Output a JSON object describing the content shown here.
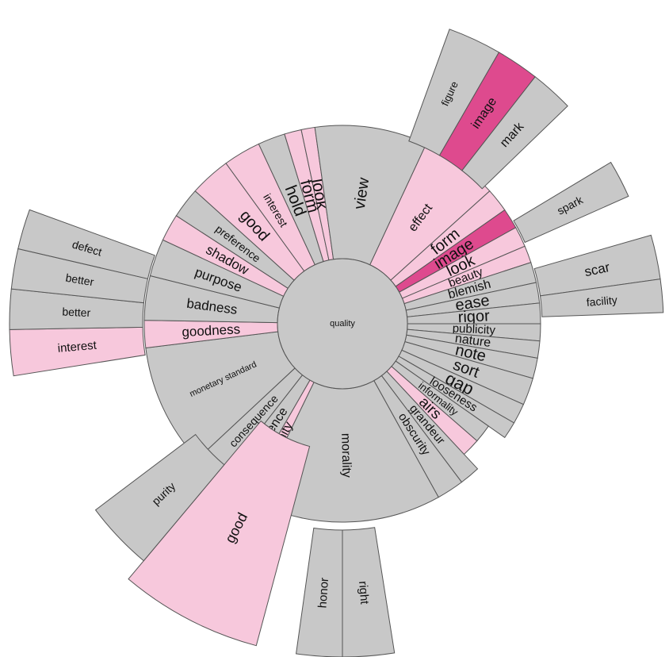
{
  "palette": {
    "gray": "#c8c8c8",
    "pink": "#f7c8dc",
    "magenta": "#de4a8e",
    "stroke": "#555555"
  },
  "center": {
    "label": "quality"
  },
  "ring1": [
    {
      "label": "effect",
      "color": "pink"
    },
    {
      "label": "form",
      "color": "pink"
    },
    {
      "label": "image",
      "color": "magenta"
    },
    {
      "label": "look",
      "color": "pink"
    },
    {
      "label": "beauty",
      "color": "pink"
    },
    {
      "label": "blemish",
      "color": "gray"
    },
    {
      "label": "ease",
      "color": "gray"
    },
    {
      "label": "rigor",
      "color": "gray"
    },
    {
      "label": "publicity",
      "color": "gray"
    },
    {
      "label": "nature",
      "color": "gray"
    },
    {
      "label": "note",
      "color": "gray"
    },
    {
      "label": "sort",
      "color": "gray"
    },
    {
      "label": "gap",
      "color": "gray"
    },
    {
      "label": "looseness",
      "color": "gray"
    },
    {
      "label": "informality",
      "color": "gray"
    },
    {
      "label": "airs",
      "color": "pink"
    },
    {
      "label": "grandeur",
      "color": "gray"
    },
    {
      "label": "obscurity",
      "color": "gray"
    },
    {
      "label": "morality",
      "color": "gray"
    },
    {
      "label": "divinity",
      "color": "pink"
    },
    {
      "label": "innocence",
      "color": "gray"
    },
    {
      "label": "consequence",
      "color": "gray"
    },
    {
      "label": "monetary standard",
      "color": "gray"
    },
    {
      "label": "goodness",
      "color": "pink"
    },
    {
      "label": "badness",
      "color": "gray"
    },
    {
      "label": "purpose",
      "color": "gray"
    },
    {
      "label": "shadow",
      "color": "pink"
    },
    {
      "label": "preference",
      "color": "gray"
    },
    {
      "label": "good",
      "color": "pink"
    },
    {
      "label": "interest",
      "color": "pink"
    },
    {
      "label": "hold",
      "color": "gray"
    },
    {
      "label": "form",
      "color": "pink"
    },
    {
      "label": "look",
      "color": "pink"
    },
    {
      "label": "view",
      "color": "gray"
    }
  ],
  "ring2": [
    {
      "label": "figure",
      "color": "gray"
    },
    {
      "label": "image",
      "color": "magenta"
    },
    {
      "label": "mark",
      "color": "gray"
    },
    {
      "label": "spark",
      "color": "gray"
    },
    {
      "label": "scar",
      "color": "gray"
    },
    {
      "label": "facility",
      "color": "gray"
    },
    {
      "label": "good",
      "color": "pink"
    },
    {
      "label": "honor",
      "color": "gray"
    },
    {
      "label": "right",
      "color": "gray"
    },
    {
      "label": "purity",
      "color": "gray"
    },
    {
      "label": "interest",
      "color": "pink"
    },
    {
      "label": "better",
      "color": "gray"
    },
    {
      "label": "better",
      "color": "gray"
    },
    {
      "label": "defect",
      "color": "gray"
    }
  ]
}
